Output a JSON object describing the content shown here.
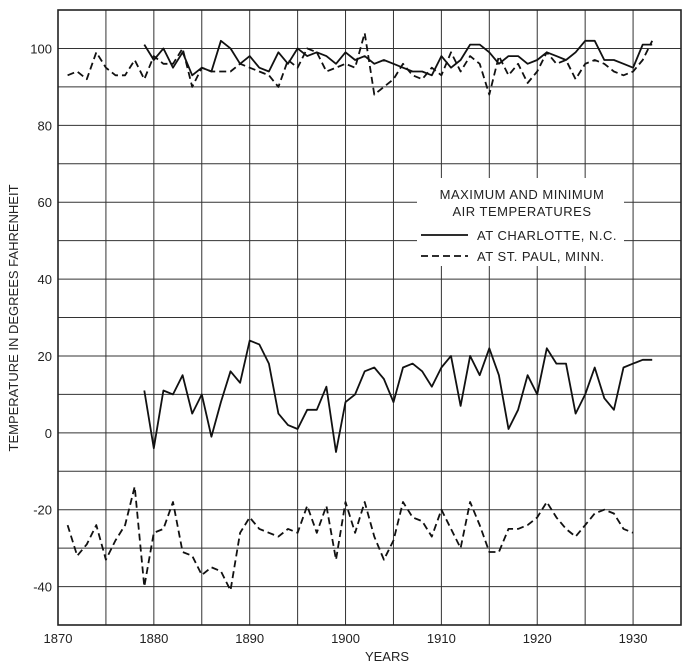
{
  "chart_data": {
    "type": "line",
    "title": "",
    "xlabel": "YEARS",
    "ylabel": "TEMPERATURE IN DEGREES FAHRENHEIT",
    "xlim": [
      1870,
      1935
    ],
    "ylim": [
      -50,
      110
    ],
    "x_ticks": [
      1870,
      1880,
      1890,
      1900,
      1910,
      1920,
      1930
    ],
    "y_ticks": [
      -40,
      -20,
      0,
      20,
      40,
      60,
      80,
      100
    ],
    "grid": true,
    "legend": {
      "title_line1": "MAXIMUM AND MINIMUM",
      "title_line2": "AIR TEMPERATURES",
      "placement": "right, upper-middle",
      "entries": [
        {
          "label": "AT CHARLOTTE, N.C.",
          "style": "solid"
        },
        {
          "label": "AT ST. PAUL, MINN.",
          "style": "dashed"
        }
      ]
    },
    "series": [
      {
        "name": "AT CHARLOTTE, N.C.",
        "group": "maximum",
        "style": "solid",
        "x": [
          1879,
          1880,
          1881,
          1882,
          1883,
          1884,
          1885,
          1886,
          1887,
          1888,
          1889,
          1890,
          1891,
          1892,
          1893,
          1894,
          1895,
          1896,
          1897,
          1898,
          1899,
          1900,
          1901,
          1902,
          1903,
          1904,
          1905,
          1906,
          1907,
          1908,
          1909,
          1910,
          1911,
          1912,
          1913,
          1914,
          1915,
          1916,
          1917,
          1918,
          1919,
          1920,
          1921,
          1922,
          1923,
          1924,
          1925,
          1926,
          1927,
          1928,
          1929,
          1930,
          1931,
          1932
        ],
        "y": [
          101,
          97,
          100,
          95,
          99,
          93,
          95,
          94,
          102,
          100,
          96,
          98,
          95,
          94,
          99,
          96,
          100,
          98,
          99,
          98,
          96,
          99,
          97,
          98,
          96,
          97,
          96,
          95,
          94,
          94,
          93,
          98,
          95,
          97,
          101,
          101,
          99,
          96,
          98,
          98,
          96,
          97,
          99,
          98,
          97,
          99,
          102,
          102,
          97,
          97,
          96,
          95,
          101,
          101
        ]
      },
      {
        "name": "AT ST. PAUL, MINN.",
        "group": "maximum",
        "style": "dashed",
        "x": [
          1871,
          1872,
          1873,
          1874,
          1875,
          1876,
          1877,
          1878,
          1879,
          1880,
          1881,
          1882,
          1883,
          1884,
          1885,
          1886,
          1887,
          1888,
          1889,
          1890,
          1891,
          1892,
          1893,
          1894,
          1895,
          1896,
          1897,
          1898,
          1899,
          1900,
          1901,
          1902,
          1903,
          1904,
          1905,
          1906,
          1907,
          1908,
          1909,
          1910,
          1911,
          1912,
          1913,
          1914,
          1915,
          1916,
          1917,
          1918,
          1919,
          1920,
          1921,
          1922,
          1923,
          1924,
          1925,
          1926,
          1927,
          1928,
          1929,
          1930,
          1931,
          1932
        ],
        "y": [
          93,
          94,
          92,
          99,
          95,
          93,
          93,
          97,
          92,
          98,
          96,
          96,
          100,
          90,
          95,
          94,
          94,
          94,
          96,
          95,
          94,
          93,
          90,
          97,
          95,
          100,
          99,
          94,
          95,
          96,
          95,
          104,
          88,
          90,
          92,
          96,
          93,
          92,
          95,
          93,
          99,
          94,
          98,
          96,
          88,
          98,
          93,
          96,
          91,
          94,
          99,
          96,
          97,
          92,
          96,
          97,
          96,
          94,
          93,
          94,
          97,
          102
        ]
      },
      {
        "name": "AT CHARLOTTE, N.C.",
        "group": "minimum",
        "style": "solid",
        "x": [
          1879,
          1880,
          1881,
          1882,
          1883,
          1884,
          1885,
          1886,
          1887,
          1888,
          1889,
          1890,
          1891,
          1892,
          1893,
          1894,
          1895,
          1896,
          1897,
          1898,
          1899,
          1900,
          1901,
          1902,
          1903,
          1904,
          1905,
          1906,
          1907,
          1908,
          1909,
          1910,
          1911,
          1912,
          1913,
          1914,
          1915,
          1916,
          1917,
          1918,
          1919,
          1920,
          1921,
          1922,
          1923,
          1924,
          1925,
          1926,
          1927,
          1928,
          1929,
          1930,
          1931,
          1932
        ],
        "y": [
          11,
          -4,
          11,
          10,
          15,
          5,
          10,
          -1,
          8,
          16,
          13,
          24,
          23,
          18,
          5,
          2,
          1,
          6,
          6,
          12,
          -5,
          8,
          10,
          16,
          17,
          14,
          8,
          17,
          18,
          16,
          12,
          17,
          20,
          7,
          20,
          15,
          22,
          15,
          1,
          6,
          15,
          10,
          22,
          18,
          18,
          5,
          10,
          17,
          9,
          6,
          17,
          18,
          19,
          19
        ]
      },
      {
        "name": "AT ST. PAUL, MINN.",
        "group": "minimum",
        "style": "dashed",
        "x": [
          1871,
          1872,
          1873,
          1874,
          1875,
          1876,
          1877,
          1878,
          1879,
          1880,
          1881,
          1882,
          1883,
          1884,
          1885,
          1886,
          1887,
          1888,
          1889,
          1890,
          1891,
          1892,
          1893,
          1894,
          1895,
          1896,
          1897,
          1898,
          1899,
          1900,
          1901,
          1902,
          1903,
          1904,
          1905,
          1906,
          1907,
          1908,
          1909,
          1910,
          1911,
          1912,
          1913,
          1914,
          1915,
          1916,
          1917,
          1918,
          1919,
          1920,
          1921,
          1922,
          1923,
          1924,
          1925,
          1926,
          1927,
          1928,
          1929,
          1930
        ],
        "y": [
          -24,
          -32,
          -29,
          -24,
          -33,
          -28,
          -24,
          -14,
          -40,
          -26,
          -25,
          -18,
          -31,
          -32,
          -37,
          -35,
          -36,
          -41,
          -26,
          -22,
          -25,
          -26,
          -27,
          -25,
          -26,
          -19,
          -26,
          -19,
          -33,
          -18,
          -26,
          -18,
          -27,
          -33,
          -28,
          -18,
          -22,
          -23,
          -27,
          -20,
          -25,
          -30,
          -18,
          -24,
          -31,
          -31,
          -25,
          -25,
          -24,
          -22,
          -18,
          -22,
          -25,
          -27,
          -24,
          -21,
          -20,
          -21,
          -25,
          -26
        ]
      }
    ]
  }
}
